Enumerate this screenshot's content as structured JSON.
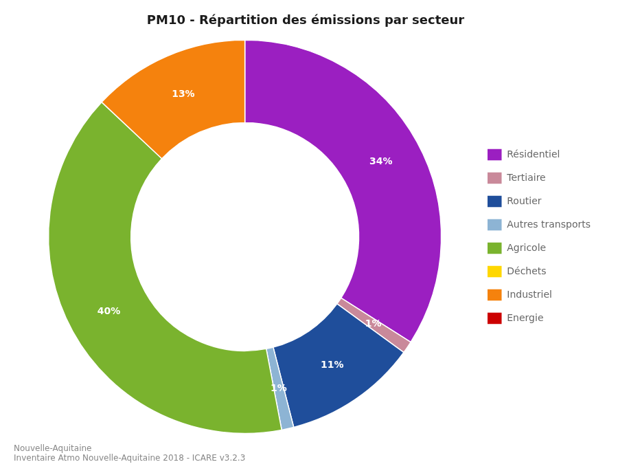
{
  "chart_data": {
    "type": "doughnut",
    "title": "PM10 - Répartition des émissions par secteur",
    "subtitle": [
      "Nouvelle-Aquitaine",
      "Inventaire Atmo Nouvelle-Aquitaine 2018 - ICARE v3.2.3"
    ],
    "categories": [
      "Résidentiel",
      "Tertiaire",
      "Routier",
      "Autres transports",
      "Agricole",
      "Déchets",
      "Industriel",
      "Energie"
    ],
    "values": [
      34,
      1,
      11,
      1,
      40,
      0,
      13,
      0
    ],
    "value_labels": [
      "34%",
      "1%",
      "11%",
      "1%",
      "40%",
      null,
      "13%",
      null
    ],
    "colors": [
      "#9B1FC1",
      "#C9899A",
      "#1F4E9B",
      "#8DB4D4",
      "#7AB32E",
      "#FFD700",
      "#F5820D",
      "#CC0000"
    ],
    "data_labels": true,
    "legend": "right"
  }
}
